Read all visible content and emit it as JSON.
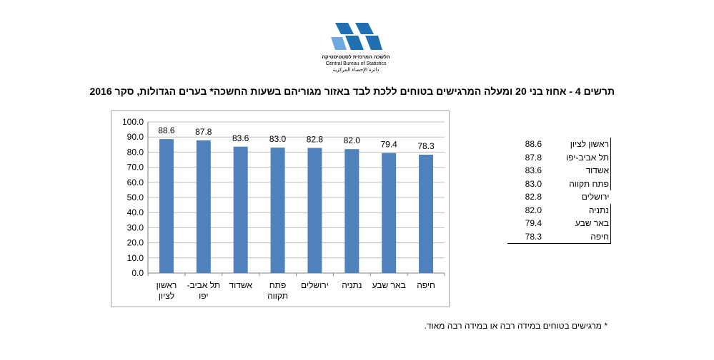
{
  "header": {
    "org_hebrew": "הלשכה המרכזית לסטטיסטיקה",
    "org_english": "Central Bureau of Statistics",
    "org_arabic": "دائرة الإحصاء المركزية",
    "logo_color": "#1f6fb2"
  },
  "title": "תרשים 4 - אחוז בני 20 ומעלה המרגישים בטוחים ללכת לבד באזור מגוריהם בשעות החשכה* בערים הגדולות, סקר 2016",
  "footnote": "* מרגישים בטוחים במידה רבה או במידה רבה מאוד.",
  "chart_data": {
    "type": "bar",
    "categories": [
      "ראשון לציון",
      "תל אביב-יפו",
      "אשדוד",
      "פתח תקווה",
      "ירושלים",
      "נתניה",
      "באר שבע",
      "חיפה"
    ],
    "category_lines": [
      [
        "ראשון",
        "לציון"
      ],
      [
        "תל אביב-",
        "יפו"
      ],
      [
        "אשדוד"
      ],
      [
        "פתח",
        "תקווה"
      ],
      [
        "ירושלים"
      ],
      [
        "נתניה"
      ],
      [
        "באר שבע"
      ],
      [
        "חיפה"
      ]
    ],
    "values": [
      88.6,
      87.8,
      83.6,
      83.0,
      82.8,
      82.0,
      79.4,
      78.3
    ],
    "value_labels": [
      "88.6",
      "87.8",
      "83.6",
      "83.0",
      "82.8",
      "82.0",
      "79.4",
      "78.3"
    ],
    "ylim": [
      0,
      100
    ],
    "yticks": [
      "0.0",
      "10.0",
      "20.0",
      "30.0",
      "40.0",
      "50.0",
      "60.0",
      "70.0",
      "80.0",
      "90.0",
      "100.0"
    ],
    "grid": true,
    "bar_color": "#4f81bd",
    "title": "",
    "xlabel": "",
    "ylabel": ""
  },
  "table": {
    "rows": [
      {
        "name": "ראשון לציון",
        "value": "88.6"
      },
      {
        "name": "תל אביב-יפו",
        "value": "87.8"
      },
      {
        "name": "אשדוד",
        "value": "83.6"
      },
      {
        "name": "פתח  תקווה",
        "value": "83.0"
      },
      {
        "name": "ירושלים",
        "value": "82.8"
      },
      {
        "name": "נתניה",
        "value": "82.0"
      },
      {
        "name": "באר שבע",
        "value": "79.4"
      },
      {
        "name": "חיפה",
        "value": "78.3"
      }
    ]
  }
}
